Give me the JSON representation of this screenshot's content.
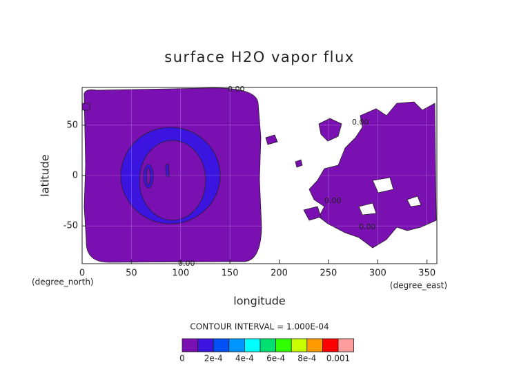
{
  "chart_data": {
    "type": "contour",
    "title": "surface H2O vapor flux",
    "xlabel": "longitude",
    "ylabel": "latitude",
    "x_unit": "(degree_east)",
    "y_unit": "(degree_north)",
    "xlim": [
      0,
      360
    ],
    "ylim": [
      -87.5,
      87.5
    ],
    "xticks": [
      0,
      50,
      100,
      150,
      200,
      250,
      300,
      350
    ],
    "yticks": [
      -50,
      0,
      50
    ],
    "grid": true,
    "contour_labels": [
      "0.00",
      "0.00",
      "0.00",
      "0.00",
      "0.00"
    ],
    "contour_interval": {
      "value": 0.0001,
      "label": "CONTOUR INTERVAL = 1.000E-04"
    },
    "colorbar": {
      "ticks": [
        0,
        {
          "value": 0.0002,
          "label": "2e-4"
        },
        {
          "value": 0.0004,
          "label": "4e-4"
        },
        {
          "value": 0.0006,
          "label": "6e-4"
        },
        {
          "value": 0.0008,
          "label": "8e-4"
        },
        0.001
      ],
      "colors": [
        "#7a0fb2",
        "#3c14e0",
        "#0050f5",
        "#0095ff",
        "#00ffff",
        "#00e070",
        "#30ff00",
        "#c8ff00",
        "#ff9a00",
        "#ff0000",
        "#ff9c9c"
      ]
    }
  }
}
